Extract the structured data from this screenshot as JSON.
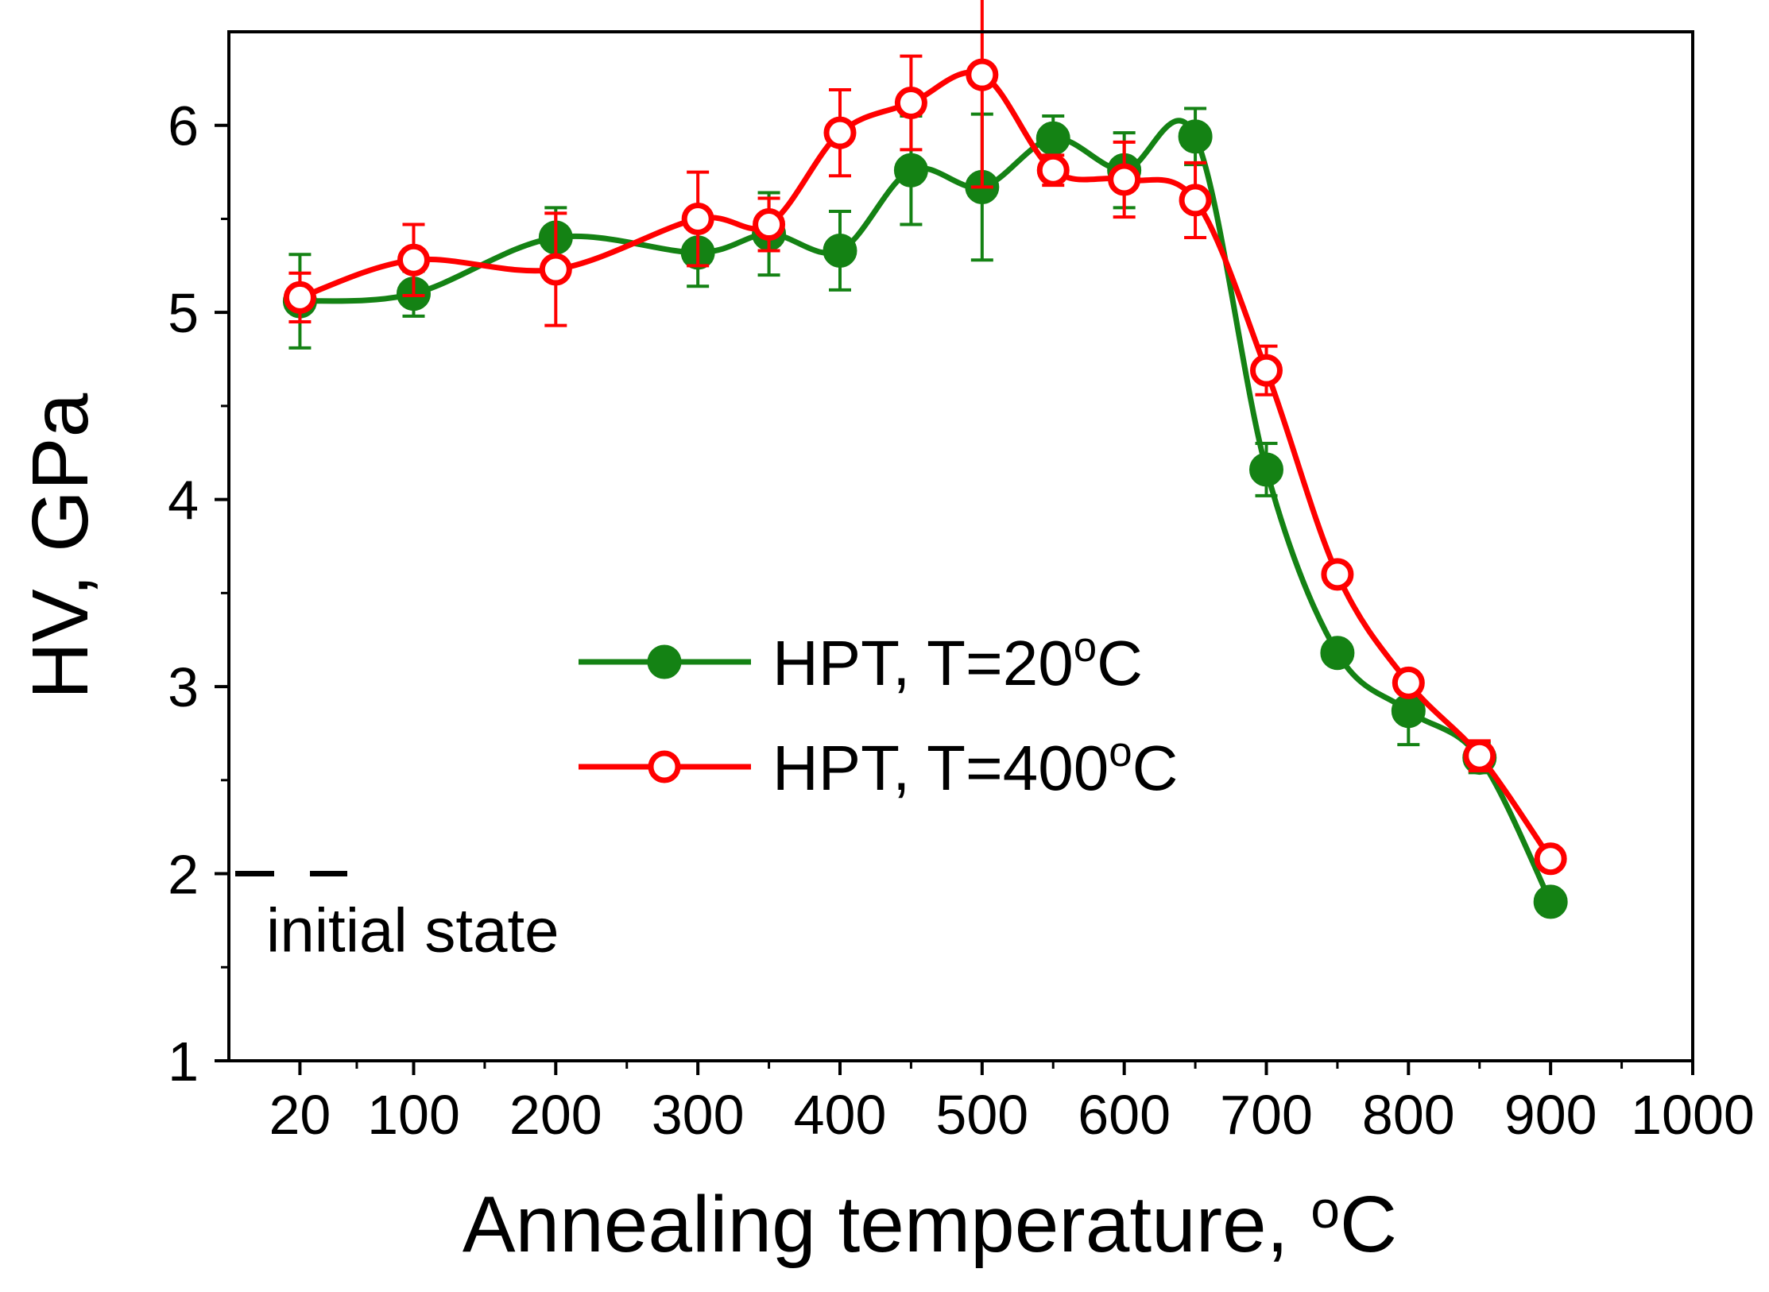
{
  "chart_data": {
    "type": "line",
    "title": "",
    "xlabel": "Annealing temperature, ",
    "xlabel_unit": "C",
    "degree_mark": "o",
    "ylabel": "HV, GPa",
    "xlim": [
      -30,
      1000
    ],
    "ylim": [
      1,
      6.5
    ],
    "x_ticks": [
      20,
      100,
      200,
      300,
      400,
      500,
      600,
      700,
      800,
      900,
      1000
    ],
    "x_tick_labels": [
      "20",
      "100",
      "200",
      "300",
      "400",
      "500",
      "600",
      "700",
      "800",
      "900",
      "1000"
    ],
    "y_ticks": [
      1,
      2,
      3,
      4,
      5,
      6
    ],
    "y_tick_labels": [
      "1",
      "2",
      "3",
      "4",
      "5",
      "6"
    ],
    "grid": false,
    "legend_position": "center-right",
    "series": [
      {
        "name": "HPT, T=20",
        "name_suffix": "C",
        "color": "#148214",
        "marker": "filled-circle",
        "x": [
          20,
          100,
          200,
          300,
          350,
          400,
          450,
          500,
          550,
          600,
          650,
          700,
          750,
          800,
          850,
          900
        ],
        "y": [
          5.06,
          5.1,
          5.4,
          5.32,
          5.42,
          5.33,
          5.76,
          5.67,
          5.93,
          5.76,
          5.94,
          4.16,
          3.18,
          2.87,
          2.62,
          1.85
        ],
        "err": [
          0.25,
          0.12,
          0.16,
          0.18,
          0.22,
          0.21,
          0.29,
          0.39,
          0.12,
          0.2,
          0.15,
          0.14,
          0.0,
          0.18,
          0.08,
          0.0
        ]
      },
      {
        "name": "HPT, T=400",
        "name_suffix": "C",
        "color": "#ff0000",
        "marker": "open-circle",
        "x": [
          20,
          100,
          200,
          300,
          350,
          400,
          450,
          500,
          550,
          600,
          650,
          700,
          750,
          800,
          850,
          900
        ],
        "y": [
          5.08,
          5.28,
          5.23,
          5.5,
          5.47,
          5.96,
          6.12,
          6.27,
          5.76,
          5.71,
          5.6,
          4.69,
          3.6,
          3.02,
          2.63,
          2.08
        ],
        "err": [
          0.13,
          0.19,
          0.3,
          0.25,
          0.14,
          0.23,
          0.25,
          0.6,
          0.08,
          0.2,
          0.2,
          0.13,
          0.0,
          0.0,
          0.08,
          0.0
        ]
      }
    ],
    "annotation": {
      "text": "initial state",
      "value": 2.0
    }
  }
}
